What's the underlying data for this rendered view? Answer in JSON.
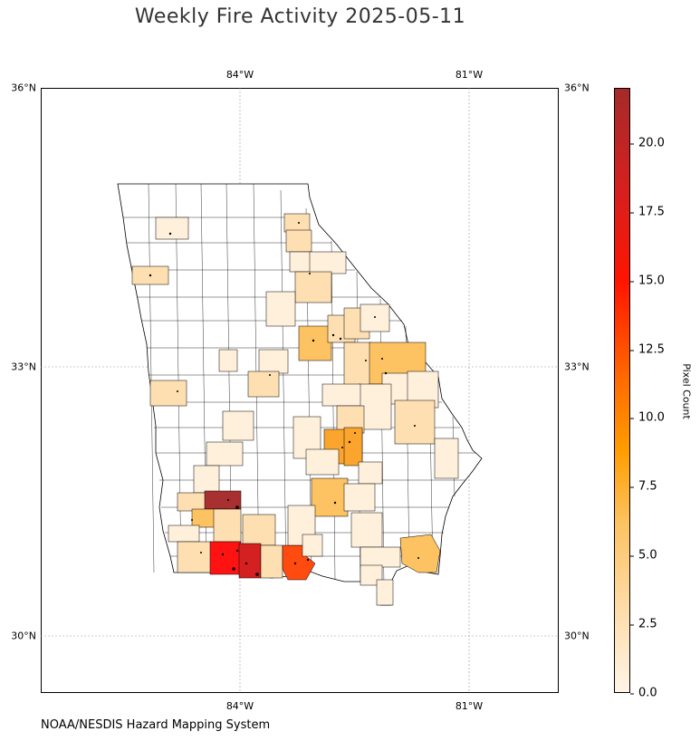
{
  "title": "Weekly Fire Activity 2025-05-11",
  "source": "NOAA/NESDIS Hazard Mapping System",
  "map": {
    "lon_labels": [
      "84°W",
      "81°W"
    ],
    "lat_labels": [
      "36°N",
      "33°N",
      "30°N"
    ],
    "colorbar": {
      "label": "Pixel Count",
      "ticks": [
        "0.0",
        "2.5",
        "5.0",
        "7.5",
        "10.0",
        "12.5",
        "15.0",
        "17.5",
        "20.0"
      ],
      "min": 0,
      "max": 22
    },
    "colors": {
      "none": "#ffffff",
      "low": "#fff0dc",
      "light": "#fedfb2",
      "medium": "#fdc261",
      "orange": "#fba42e",
      "red_orange": "#ff4a10",
      "red": "#ff1212",
      "crimson": "#d42020",
      "dark_red": "#a83030",
      "border": "#000000"
    }
  }
}
